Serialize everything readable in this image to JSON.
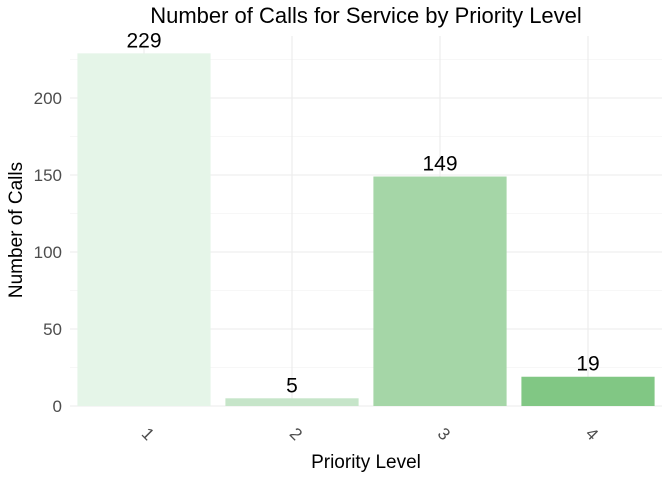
{
  "chart_data": {
    "type": "bar",
    "title": "Number of Calls for Service by Priority Level",
    "xlabel": "Priority Level",
    "ylabel": "Number of Calls",
    "categories": [
      "1",
      "2",
      "3",
      "4"
    ],
    "values": [
      229,
      5,
      149,
      19
    ],
    "data_labels": [
      "229",
      "5",
      "149",
      "19"
    ],
    "bar_colors": [
      "#e5f5e8",
      "#c6e5c9",
      "#a5d6a7",
      "#81c784"
    ],
    "ylim": [
      0,
      240
    ],
    "y_ticks": [
      0,
      50,
      100,
      150,
      200
    ],
    "y_tick_labels": [
      "0",
      "50",
      "100",
      "150",
      "200"
    ],
    "x_tick_rotation": "45 degrees",
    "grid": true,
    "legend": "none"
  }
}
